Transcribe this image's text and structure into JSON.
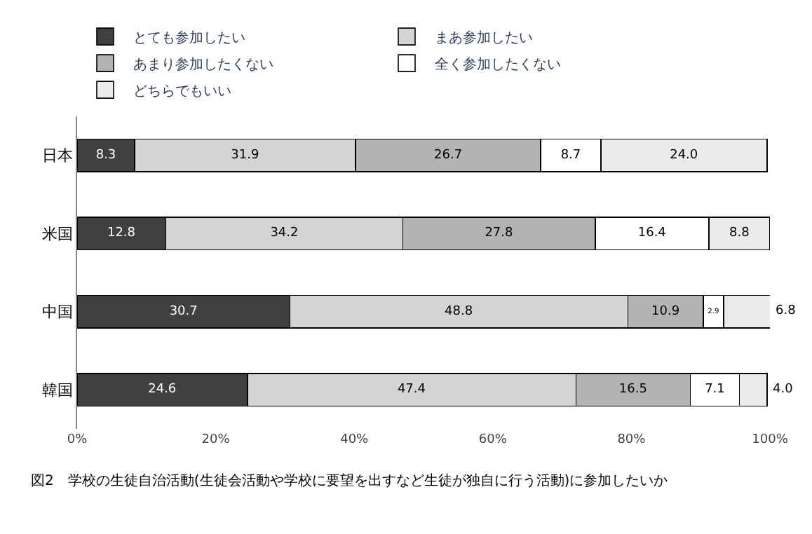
{
  "chart_data": {
    "type": "bar",
    "orientation": "horizontal",
    "stacked": true,
    "title": "図2　学校の生徒自治活動(生徒会活動や学校に要望を出すなど生徒が独自に行う活動)に参加したいか",
    "categories": [
      "日本",
      "米国",
      "中国",
      "韓国"
    ],
    "series": [
      {
        "name": "とても参加したい",
        "color": "#404040",
        "values": [
          8.3,
          12.8,
          30.7,
          24.6
        ],
        "value_labels": [
          "8.3",
          "12.8",
          "30.7",
          "24.6"
        ]
      },
      {
        "name": "まあ参加したい",
        "color": "#d4d4d4",
        "values": [
          31.9,
          34.2,
          48.8,
          47.4
        ],
        "value_labels": [
          "31.9",
          "34.2",
          "48.8",
          "47.4"
        ]
      },
      {
        "name": "あまり参加したくない",
        "color": "#b3b3b3",
        "values": [
          26.7,
          27.8,
          10.9,
          16.5
        ],
        "value_labels": [
          "26.7",
          "27.8",
          "10.9",
          "16.5"
        ]
      },
      {
        "name": "全く参加したくない",
        "color": "#ffffff",
        "values": [
          8.7,
          16.4,
          2.9,
          7.1
        ],
        "value_labels": [
          "8.7",
          "16.4",
          "2.9",
          "7.1"
        ]
      },
      {
        "name": "どちらでもいい",
        "color": "#ebebeb",
        "values": [
          24.0,
          8.8,
          6.8,
          4.0
        ],
        "value_labels": [
          "24.0",
          "8.8",
          "6.8",
          "4.0"
        ]
      }
    ],
    "xlim": [
      0,
      100
    ],
    "xticks": [
      {
        "value": 0,
        "label": "0%"
      },
      {
        "value": 20,
        "label": "20%"
      },
      {
        "value": 40,
        "label": "40%"
      },
      {
        "value": 60,
        "label": "60%"
      },
      {
        "value": 80,
        "label": "80%"
      },
      {
        "value": 100,
        "label": "100%"
      }
    ],
    "legend": "top"
  }
}
